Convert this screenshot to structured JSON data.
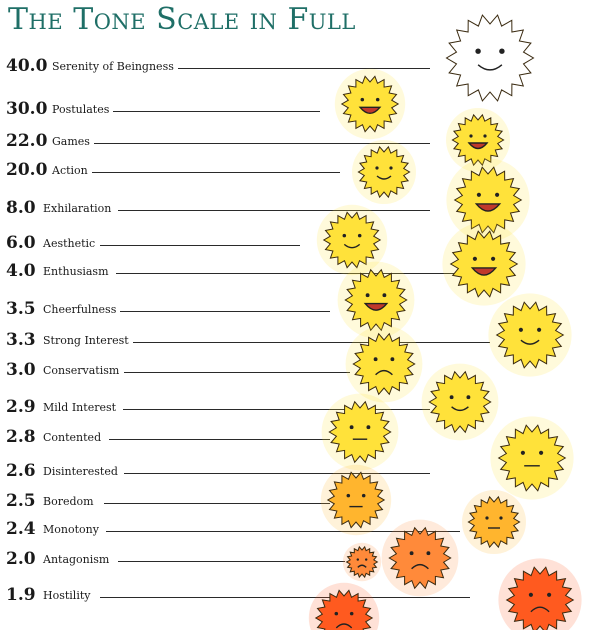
{
  "title": "The Tone Scale in Full",
  "scale": [
    {
      "value": "40.0",
      "label": "Serenity of Beingness"
    },
    {
      "value": "30.0",
      "label": "Postulates"
    },
    {
      "value": "22.0",
      "label": "Games"
    },
    {
      "value": "20.0",
      "label": "Action"
    },
    {
      "value": "8.0",
      "label": "Exhilaration"
    },
    {
      "value": "6.0",
      "label": "Aesthetic"
    },
    {
      "value": "4.0",
      "label": "Enthusiasm"
    },
    {
      "value": "3.5",
      "label": "Cheerfulness"
    },
    {
      "value": "3.3",
      "label": "Strong Interest"
    },
    {
      "value": "3.0",
      "label": "Conservatism"
    },
    {
      "value": "2.9",
      "label": "Mild Interest"
    },
    {
      "value": "2.8",
      "label": "Contented"
    },
    {
      "value": "2.6",
      "label": "Disinterested"
    },
    {
      "value": "2.5",
      "label": "Boredom"
    },
    {
      "value": "2.4",
      "label": "Monotony"
    },
    {
      "value": "2.0",
      "label": "Antagonism"
    },
    {
      "value": "1.9",
      "label": "Hostility"
    }
  ],
  "colors": {
    "title": "#1f6f67",
    "sun_bright": "#ffe23a",
    "sun_warm": "#ffb52e",
    "sun_angry": "#ff5a1f"
  }
}
